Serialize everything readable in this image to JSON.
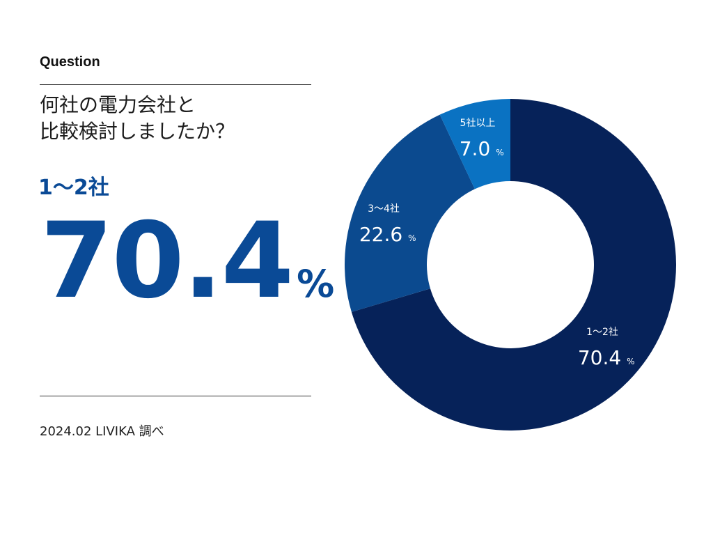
{
  "header": {
    "label": "Question",
    "question_line1": "何社の電力会社と",
    "question_line2": "比較検討しましたか？"
  },
  "highlight": {
    "label": "1～2社",
    "value": "70.4",
    "unit": "%"
  },
  "footer": {
    "source": "2024.02 LIVIKA 調べ"
  },
  "colors": {
    "accent": "#0a4a96"
  },
  "chart_data": {
    "type": "pie",
    "title": "",
    "categories": [
      "1～2社",
      "3～4社",
      "5社以上"
    ],
    "values": [
      70.4,
      22.6,
      7.0
    ],
    "value_labels": [
      "70.4",
      "22.6",
      "7.0"
    ],
    "unit": "%",
    "colors": [
      "#062259",
      "#0b4a8f",
      "#0a72c2"
    ],
    "donut": true
  }
}
